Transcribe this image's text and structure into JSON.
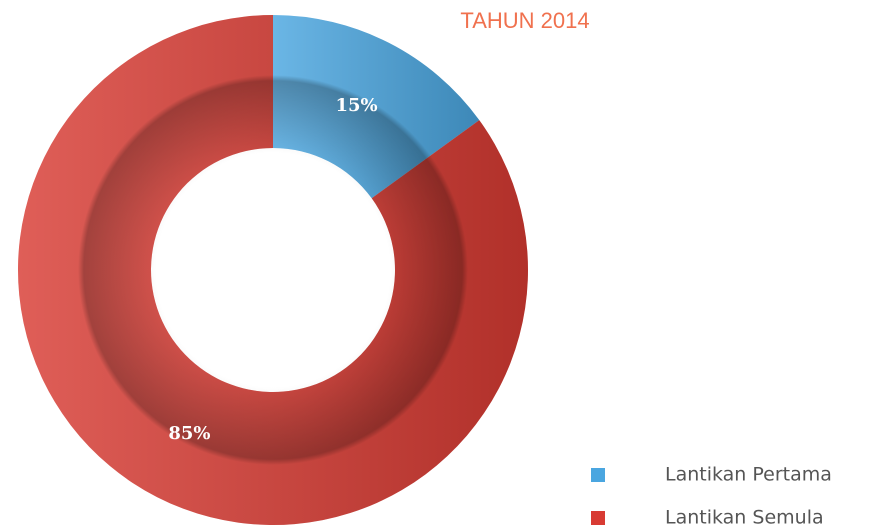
{
  "chart_data": {
    "type": "pie",
    "title": "TAHUN 2014",
    "categories": [
      "Lantikan Pertama",
      "Lantikan Semula"
    ],
    "values": [
      15,
      85
    ],
    "value_labels": [
      "15%",
      "85%"
    ],
    "colors": [
      "#4aa6e0",
      "#d83b33"
    ],
    "donut": true
  }
}
